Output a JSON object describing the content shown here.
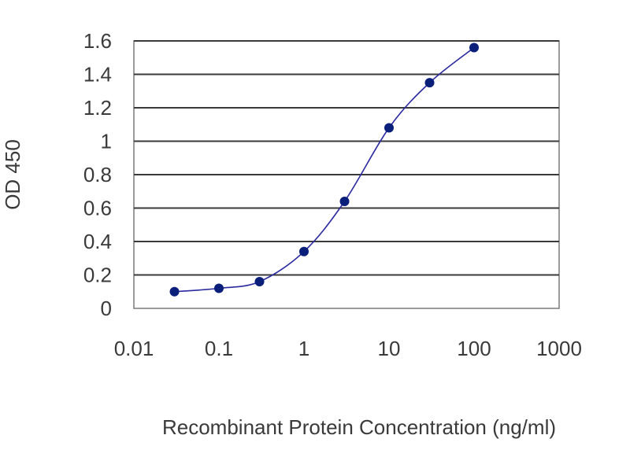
{
  "chart_data": {
    "type": "scatter",
    "title": "",
    "xlabel": "Recombinant Protein Concentration (ng/ml)",
    "ylabel": "OD 450",
    "xscale": "log",
    "xlim": [
      0.01,
      1000
    ],
    "ylim": [
      0,
      1.6
    ],
    "x_ticks": [
      "0.01",
      "0.1",
      "1",
      "10",
      "100",
      "1000"
    ],
    "y_ticks": [
      "0",
      "0.2",
      "0.4",
      "0.6",
      "0.8",
      "1",
      "1.2",
      "1.4",
      "1.6"
    ],
    "grid": "horizontal",
    "series": [
      {
        "x": [
          0.03,
          0.1,
          0.3,
          1,
          3,
          10,
          30,
          100
        ],
        "y": [
          0.1,
          0.12,
          0.16,
          0.34,
          0.64,
          1.08,
          1.35,
          1.56
        ]
      }
    ],
    "colors": {
      "curve": "#2a2aa0",
      "marker": "#0a1f7a",
      "grid": "#3a3a3a"
    }
  }
}
